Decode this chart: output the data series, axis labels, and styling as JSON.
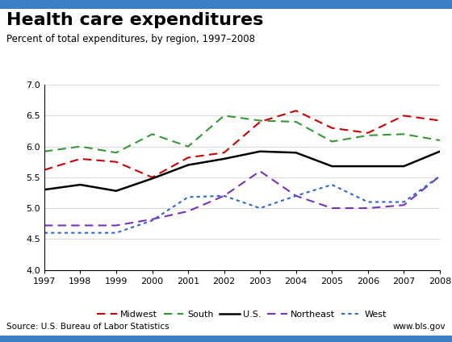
{
  "title": "Health care expenditures",
  "subtitle": "Percent of total expenditures, by region, 1997–2008",
  "source": "Source: U.S. Bureau of Labor Statistics",
  "website": "www.bls.gov",
  "years": [
    1997,
    1998,
    1999,
    2000,
    2001,
    2002,
    2003,
    2004,
    2005,
    2006,
    2007,
    2008
  ],
  "midwest": [
    5.62,
    5.8,
    5.75,
    5.5,
    5.82,
    5.9,
    6.4,
    6.58,
    6.3,
    6.22,
    6.5,
    6.42
  ],
  "south": [
    5.92,
    6.0,
    5.9,
    6.2,
    6.0,
    6.5,
    6.42,
    6.4,
    6.08,
    6.18,
    6.2,
    6.1
  ],
  "us": [
    5.3,
    5.38,
    5.28,
    5.48,
    5.7,
    5.8,
    5.92,
    5.9,
    5.68,
    5.68,
    5.68,
    5.92
  ],
  "northeast": [
    4.72,
    4.72,
    4.72,
    4.82,
    4.95,
    5.2,
    5.6,
    5.2,
    5.0,
    5.0,
    5.05,
    5.52
  ],
  "west": [
    4.6,
    4.6,
    4.6,
    4.8,
    5.18,
    5.2,
    5.0,
    5.2,
    5.38,
    5.1,
    5.1,
    5.52
  ],
  "ylim": [
    4.0,
    7.0
  ],
  "yticks": [
    4.0,
    4.5,
    5.0,
    5.5,
    6.0,
    6.5,
    7.0
  ],
  "midwest_color": "#cc0000",
  "south_color": "#339933",
  "us_color": "#000000",
  "northeast_color": "#7733bb",
  "west_color": "#3366cc",
  "bg_color": "#ffffff",
  "border_color": "#3d7fc4",
  "title_fontsize": 16,
  "subtitle_fontsize": 8.5,
  "tick_fontsize": 8,
  "legend_fontsize": 8,
  "source_fontsize": 7.5
}
